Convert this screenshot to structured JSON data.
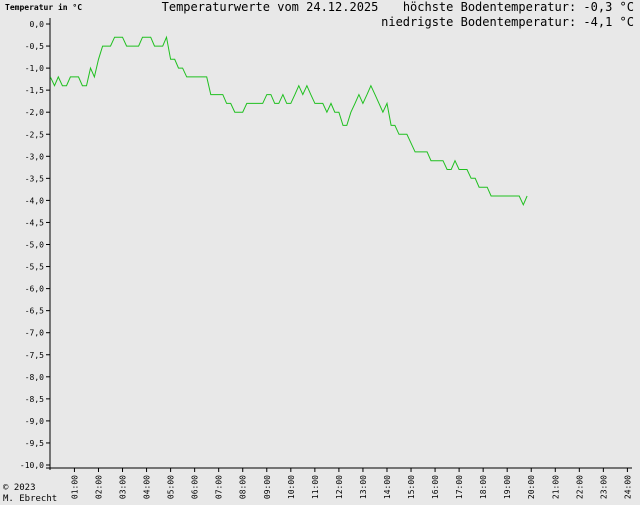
{
  "chart_data": {
    "type": "line",
    "title": "Temperaturwerte vom 24.12.2025",
    "y_label": "Temperatur in °C",
    "annotations": [
      "höchste Bodentemperatur: -0,3 °C",
      "niedrigste Bodentemperatur: -4,1 °C"
    ],
    "footer": [
      "© 2023",
      "M. Ebrecht"
    ],
    "x": [
      0,
      0.17,
      0.33,
      0.5,
      0.67,
      0.83,
      1.17,
      1.33,
      1.5,
      1.67,
      1.83,
      2,
      2.17,
      2.5,
      2.67,
      3,
      3.17,
      3.67,
      3.83,
      4.17,
      4.33,
      4.67,
      4.83,
      5,
      5.17,
      5.33,
      5.5,
      5.67,
      6.5,
      6.67,
      7.17,
      7.33,
      7.5,
      7.67,
      8,
      8.17,
      8.83,
      9,
      9.17,
      9.33,
      9.5,
      9.67,
      9.83,
      10,
      10.17,
      10.33,
      10.5,
      10.67,
      10.83,
      11,
      11.33,
      11.5,
      11.67,
      11.83,
      12,
      12.17,
      12.33,
      12.5,
      12.67,
      12.83,
      13,
      13.17,
      13.33,
      13.5,
      13.67,
      13.83,
      14,
      14.17,
      14.33,
      14.5,
      14.83,
      15,
      15.17,
      15.67,
      15.83,
      16.33,
      16.5,
      16.67,
      16.83,
      17,
      17.33,
      17.5,
      17.67,
      17.83,
      18.17,
      18.33,
      19.5,
      19.67,
      19.83
    ],
    "values": [
      -1.2,
      -1.4,
      -1.2,
      -1.4,
      -1.4,
      -1.2,
      -1.2,
      -1.4,
      -1.4,
      -1.0,
      -1.2,
      -0.8,
      -0.5,
      -0.5,
      -0.3,
      -0.3,
      -0.5,
      -0.5,
      -0.3,
      -0.3,
      -0.5,
      -0.5,
      -0.3,
      -0.8,
      -0.8,
      -1.0,
      -1.0,
      -1.2,
      -1.2,
      -1.6,
      -1.6,
      -1.8,
      -1.8,
      -2.0,
      -2.0,
      -1.8,
      -1.8,
      -1.6,
      -1.6,
      -1.8,
      -1.8,
      -1.6,
      -1.8,
      -1.8,
      -1.6,
      -1.4,
      -1.6,
      -1.4,
      -1.6,
      -1.8,
      -1.8,
      -2.0,
      -1.8,
      -2.0,
      -2.0,
      -2.3,
      -2.3,
      -2.0,
      -1.8,
      -1.6,
      -1.8,
      -1.6,
      -1.4,
      -1.6,
      -1.8,
      -2.0,
      -1.8,
      -2.3,
      -2.3,
      -2.5,
      -2.5,
      -2.7,
      -2.9,
      -2.9,
      -3.1,
      -3.1,
      -3.3,
      -3.3,
      -3.1,
      -3.3,
      -3.3,
      -3.5,
      -3.5,
      -3.7,
      -3.7,
      -3.9,
      -3.9,
      -4.1,
      -3.9
    ],
    "color": "#1fc01f",
    "xlim": [
      0,
      24
    ],
    "xticks": [
      {
        "value": 1,
        "label": "01:00"
      },
      {
        "value": 2,
        "label": "02:00"
      },
      {
        "value": 3,
        "label": "03:00"
      },
      {
        "value": 4,
        "label": "04:00"
      },
      {
        "value": 5,
        "label": "05:00"
      },
      {
        "value": 6,
        "label": "06:00"
      },
      {
        "value": 7,
        "label": "07:00"
      },
      {
        "value": 8,
        "label": "08:00"
      },
      {
        "value": 9,
        "label": "09:00"
      },
      {
        "value": 10,
        "label": "10:00"
      },
      {
        "value": 11,
        "label": "11:00"
      },
      {
        "value": 12,
        "label": "12:00"
      },
      {
        "value": 13,
        "label": "13:00"
      },
      {
        "value": 14,
        "label": "14:00"
      },
      {
        "value": 15,
        "label": "15:00"
      },
      {
        "value": 16,
        "label": "16:00"
      },
      {
        "value": 17,
        "label": "17:00"
      },
      {
        "value": 18,
        "label": "18:00"
      },
      {
        "value": 19,
        "label": "19:00"
      },
      {
        "value": 20,
        "label": "20:00"
      },
      {
        "value": 21,
        "label": "21:00"
      },
      {
        "value": 22,
        "label": "22:00"
      },
      {
        "value": 23,
        "label": "23:00"
      },
      {
        "value": 24,
        "label": "24:00"
      }
    ],
    "ylim": [
      -10,
      0
    ],
    "yticks": [
      {
        "value": 0,
        "label": "0,0"
      },
      {
        "value": -0.5,
        "label": "-0,5"
      },
      {
        "value": -1,
        "label": "-1,0"
      },
      {
        "value": -1.5,
        "label": "-1,5"
      },
      {
        "value": -2,
        "label": "-2,0"
      },
      {
        "value": -2.5,
        "label": "-2,5"
      },
      {
        "value": -3,
        "label": "-3,0"
      },
      {
        "value": -3.5,
        "label": "-3,5"
      },
      {
        "value": -4,
        "label": "-4,0"
      },
      {
        "value": -4.5,
        "label": "-4,5"
      },
      {
        "value": -5,
        "label": "-5,0"
      },
      {
        "value": -5.5,
        "label": "-5,5"
      },
      {
        "value": -6,
        "label": "-6,0"
      },
      {
        "value": -6.5,
        "label": "-6,5"
      },
      {
        "value": -7,
        "label": "-7,0"
      },
      {
        "value": -7.5,
        "label": "-7,5"
      },
      {
        "value": -8,
        "label": "-8,0"
      },
      {
        "value": -8.5,
        "label": "-8,5"
      },
      {
        "value": -9,
        "label": "-9,0"
      },
      {
        "value": -9.5,
        "label": "-9,5"
      },
      {
        "value": -10,
        "label": "-10,0"
      }
    ],
    "grid": false
  }
}
